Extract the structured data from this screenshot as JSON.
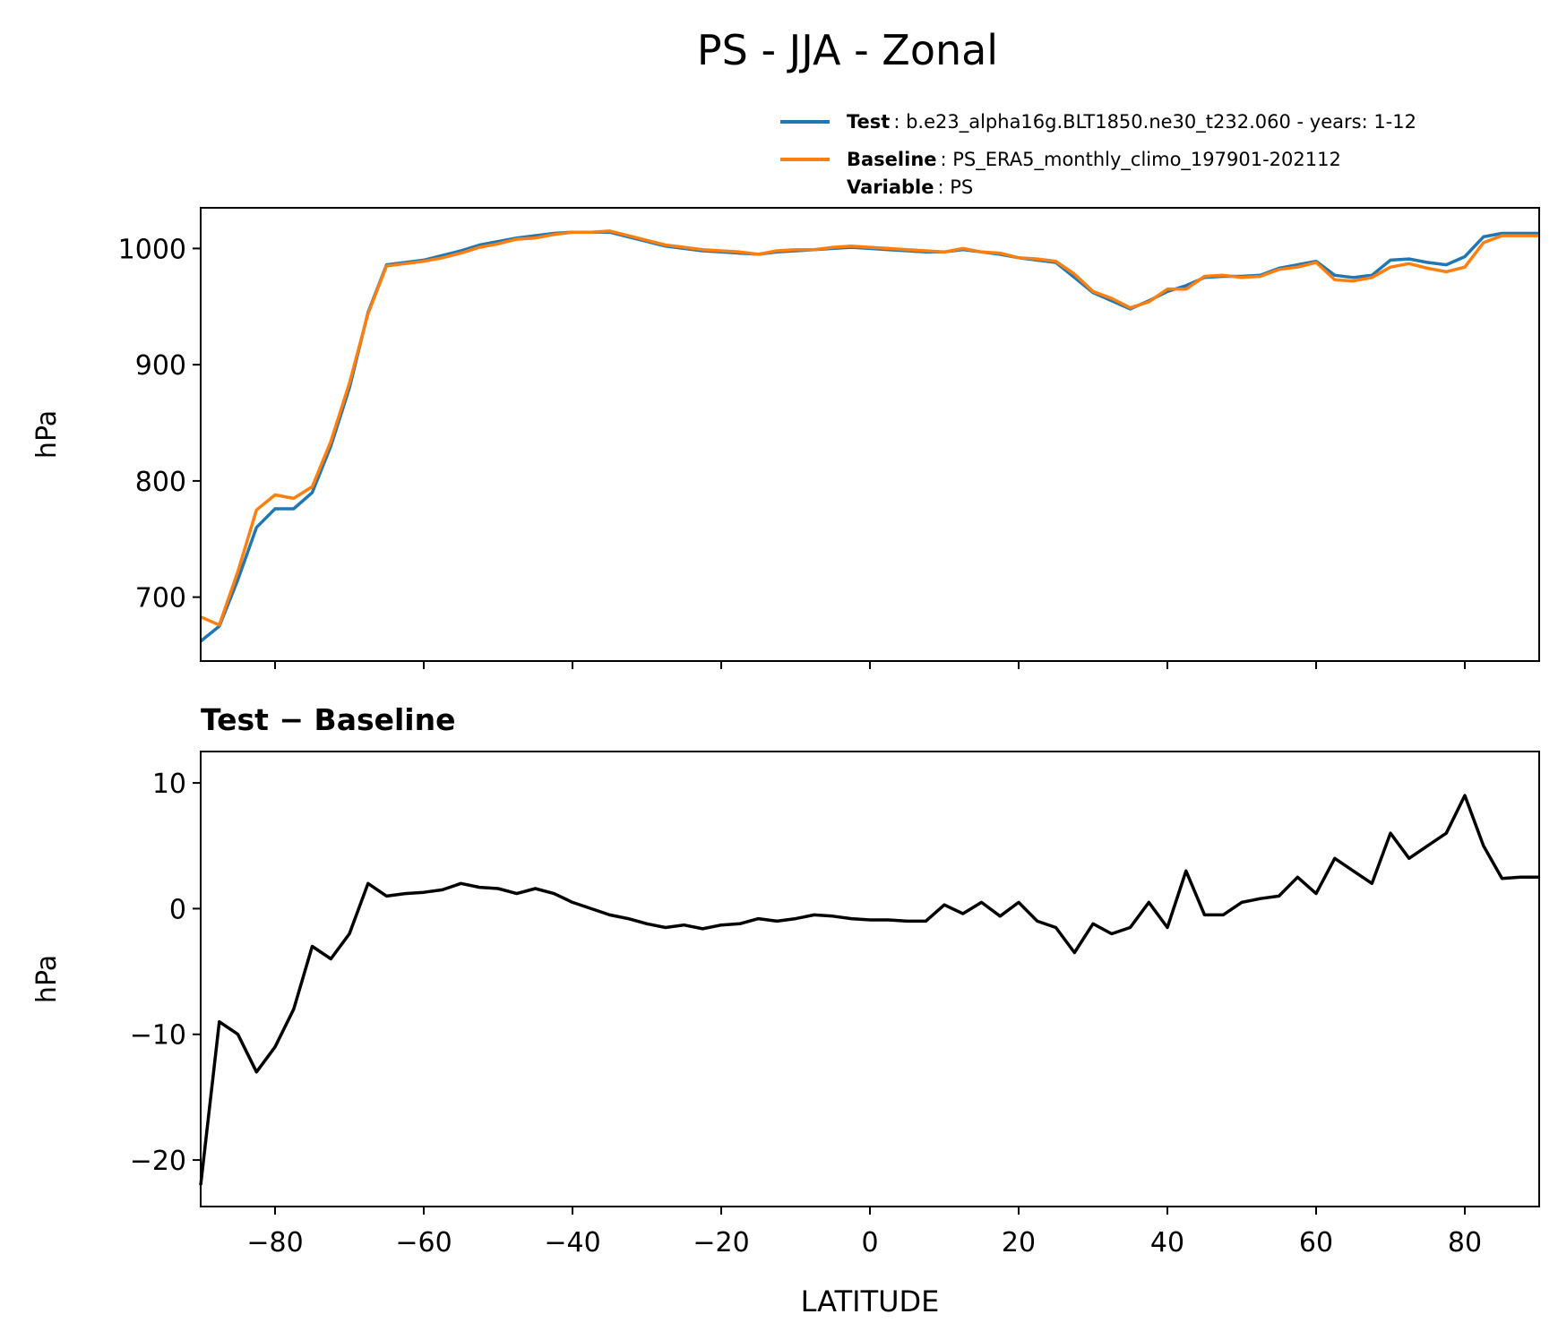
{
  "title": "PS - JJA - Zonal",
  "chart_data": [
    {
      "type": "line",
      "ylabel": "hPa",
      "x": [
        -90,
        -87.5,
        -85,
        -82.5,
        -80,
        -77.5,
        -75,
        -72.5,
        -70,
        -67.5,
        -65,
        -62.5,
        -60,
        -57.5,
        -55,
        -52.5,
        -50,
        -47.5,
        -45,
        -42.5,
        -40,
        -37.5,
        -35,
        -32.5,
        -30,
        -27.5,
        -25,
        -22.5,
        -20,
        -17.5,
        -15,
        -12.5,
        -10,
        -7.5,
        -5,
        -2.5,
        0,
        2.5,
        5,
        7.5,
        10,
        12.5,
        15,
        17.5,
        20,
        22.5,
        25,
        27.5,
        30,
        32.5,
        35,
        37.5,
        40,
        42.5,
        45,
        47.5,
        50,
        52.5,
        55,
        57.5,
        60,
        62.5,
        65,
        67.5,
        70,
        72.5,
        75,
        77.5,
        80,
        82.5,
        85,
        87.5,
        90
      ],
      "series": [
        {
          "name": "Test",
          "detail": ": b.e23_alpha16g.BLT1850.ne30_t232.060 - years: 1-12",
          "color": "#1f77b4",
          "values": [
            662,
            675,
            715,
            760,
            776,
            776,
            790,
            830,
            880,
            945,
            986,
            988,
            990,
            994,
            998,
            1003,
            1006,
            1009,
            1011,
            1013,
            1014,
            1014,
            1014,
            1010,
            1006,
            1002,
            1000,
            998,
            997,
            996,
            995,
            997,
            998,
            999,
            1000,
            1001,
            1000,
            999,
            998,
            997,
            997,
            999,
            997,
            995,
            992,
            990,
            988,
            975,
            962,
            955,
            948,
            955,
            963,
            968,
            975,
            976,
            976,
            977,
            983,
            986,
            989,
            977,
            975,
            977,
            990,
            991,
            988,
            986,
            993,
            1010,
            1013,
            1013,
            1013
          ]
        },
        {
          "name": "Baseline",
          "detail": ": PS_ERA5_monthly_climo_197901-202112",
          "color": "#ff7f0e",
          "extra": {
            "name": "Variable",
            "detail": ": PS"
          },
          "values": [
            683,
            676,
            722,
            775,
            788,
            785,
            795,
            834,
            884,
            944,
            985,
            987,
            989,
            992,
            996,
            1001,
            1004,
            1008,
            1009,
            1012,
            1014,
            1014,
            1015,
            1011,
            1007,
            1003,
            1001,
            999,
            998,
            997,
            995,
            998,
            999,
            999,
            1001,
            1002,
            1001,
            1000,
            999,
            998,
            997,
            1000,
            997,
            996,
            992,
            991,
            989,
            978,
            963,
            957,
            949,
            954,
            965,
            965,
            976,
            977,
            975,
            976,
            982,
            984,
            988,
            973,
            972,
            975,
            984,
            987,
            983,
            980,
            984,
            1005,
            1011,
            1011,
            1011
          ]
        }
      ],
      "xlim": [
        -90,
        90
      ],
      "xticks": [
        -80,
        -60,
        -40,
        -20,
        0,
        20,
        40,
        60,
        80
      ],
      "xtick_labels": false,
      "ylim": [
        645,
        1035
      ],
      "yticks": [
        700,
        800,
        900,
        1000
      ]
    },
    {
      "type": "line",
      "title": "Test − Baseline",
      "ylabel": "hPa",
      "xlabel": "LATITUDE",
      "x": [
        -90,
        -87.5,
        -85,
        -82.5,
        -80,
        -77.5,
        -75,
        -72.5,
        -70,
        -67.5,
        -65,
        -62.5,
        -60,
        -57.5,
        -55,
        -52.5,
        -50,
        -47.5,
        -45,
        -42.5,
        -40,
        -37.5,
        -35,
        -32.5,
        -30,
        -27.5,
        -25,
        -22.5,
        -20,
        -17.5,
        -15,
        -12.5,
        -10,
        -7.5,
        -5,
        -2.5,
        0,
        2.5,
        5,
        7.5,
        10,
        12.5,
        15,
        17.5,
        20,
        22.5,
        25,
        27.5,
        30,
        32.5,
        35,
        37.5,
        40,
        42.5,
        45,
        47.5,
        50,
        52.5,
        55,
        57.5,
        60,
        62.5,
        65,
        67.5,
        70,
        72.5,
        75,
        77.5,
        80,
        82.5,
        85,
        87.5,
        90
      ],
      "series": [
        {
          "color": "#000000",
          "values": [
            -22,
            -9,
            -10,
            -13,
            -11,
            -8,
            -3,
            -4,
            -2,
            2,
            1,
            1.2,
            1.3,
            1.5,
            2,
            1.7,
            1.6,
            1.2,
            1.6,
            1.2,
            0.5,
            0,
            -0.5,
            -0.8,
            -1.2,
            -1.5,
            -1.3,
            -1.6,
            -1.3,
            -1.2,
            -0.8,
            -1,
            -0.8,
            -0.5,
            -0.6,
            -0.8,
            -0.9,
            -0.9,
            -1,
            -1,
            0.3,
            -0.4,
            0.5,
            -0.6,
            0.5,
            -1,
            -1.5,
            -3.5,
            -1.2,
            -2,
            -1.5,
            0.5,
            -1.5,
            3,
            -0.5,
            -0.5,
            0.5,
            0.8,
            1,
            2.5,
            1.2,
            4,
            3,
            2,
            6,
            4,
            5,
            6,
            9,
            5,
            2.4,
            2.5,
            2.5
          ]
        }
      ],
      "xlim": [
        -90,
        90
      ],
      "xticks": [
        {
          "value": -80,
          "label": "−80"
        },
        {
          "value": -60,
          "label": "−60"
        },
        {
          "value": -40,
          "label": "−40"
        },
        {
          "value": -20,
          "label": "−20"
        },
        0,
        20,
        40,
        60,
        80
      ],
      "xtick_labels": true,
      "ylim": [
        -23.7,
        12.5
      ],
      "yticks": [
        {
          "value": -20,
          "label": "−20"
        },
        {
          "value": -10,
          "label": "−10"
        },
        0,
        10
      ]
    }
  ]
}
